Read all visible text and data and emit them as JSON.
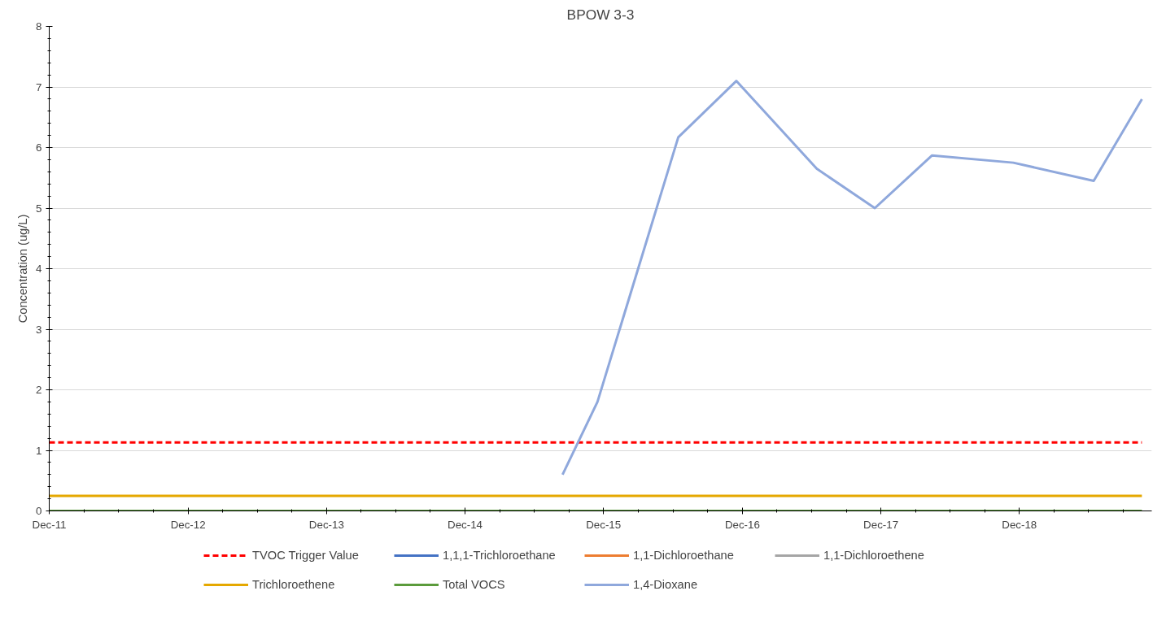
{
  "chart_data": {
    "type": "line",
    "title": "BPOW 3-3",
    "ylabel": "Concentration (ug/L)",
    "xlim": [
      "2011-12-01",
      "2019-11-15"
    ],
    "ylim": [
      0,
      8
    ],
    "yticks": [
      0,
      1,
      2,
      3,
      4,
      5,
      6,
      7,
      8
    ],
    "xticks": [
      {
        "value": "2011-12-01",
        "label": "Dec-11"
      },
      {
        "value": "2012-12-01",
        "label": "Dec-12"
      },
      {
        "value": "2013-12-01",
        "label": "Dec-13"
      },
      {
        "value": "2014-12-01",
        "label": "Dec-14"
      },
      {
        "value": "2015-12-01",
        "label": "Dec-15"
      },
      {
        "value": "2016-12-01",
        "label": "Dec-16"
      },
      {
        "value": "2017-12-01",
        "label": "Dec-17"
      },
      {
        "value": "2018-12-01",
        "label": "Dec-18"
      }
    ],
    "grid": "y",
    "legend": "bottom",
    "line_style": "solid",
    "series": [
      {
        "name": "TVOC Trigger Value",
        "color": "#ff0000",
        "line_style": "dashed",
        "x": [
          "2011-12-01",
          "2019-10-20"
        ],
        "values": [
          1.13,
          1.13
        ]
      },
      {
        "name": "1,1,1-Trichloroethane",
        "color": "#4472c4",
        "values": [
          null
        ]
      },
      {
        "name": "1,1-Dichloroethane",
        "color": "#ed7d31",
        "values": [
          null
        ]
      },
      {
        "name": "1,1-Dichloroethene",
        "color": "#a5a5a5",
        "values": [
          null
        ]
      },
      {
        "name": "Trichloroethene",
        "color": "#e5a800",
        "x": [
          "2011-12-01",
          "2019-10-20"
        ],
        "values": [
          0.25,
          0.25
        ]
      },
      {
        "name": "Total VOCS",
        "color": "#5b9b3c",
        "x": [
          "2011-12-01",
          "2019-10-20"
        ],
        "values": [
          0,
          0
        ]
      },
      {
        "name": "1,4-Dioxane",
        "color": "#8fa8dc",
        "x": [
          "2015-08-15",
          "2015-11-15",
          "2016-06-15",
          "2016-11-15",
          "2017-06-15",
          "2017-11-15",
          "2018-04-15",
          "2018-11-15",
          "2019-06-15",
          "2019-10-20"
        ],
        "values": [
          0.6,
          1.8,
          6.17,
          7.1,
          5.65,
          5.0,
          5.87,
          5.75,
          5.45,
          6.8
        ]
      }
    ]
  }
}
